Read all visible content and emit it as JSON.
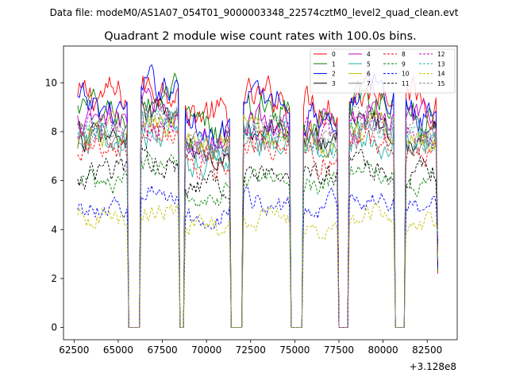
{
  "figure": {
    "suptitle": "Data file: modeM0/AS1A07_054T01_9000003348_22574cztM0_level2_quad_clean.evt",
    "offset_label": "+3.128e8"
  },
  "chart_data": {
    "type": "line",
    "title": "Quadrant 2 module wise count rates with 100.0s bins.",
    "xlabel": "",
    "ylabel": "",
    "xlim": [
      61900,
      84200
    ],
    "ylim": [
      -0.5,
      11.5
    ],
    "x_offset": 312800000,
    "x_range": [
      62700,
      83100
    ],
    "bin_width": 100,
    "x_ticks": [
      62500,
      65000,
      67500,
      70000,
      72500,
      75000,
      77500,
      80000,
      82500
    ],
    "x_tick_labels": [
      "62500",
      "65000",
      "67500",
      "70000",
      "72500",
      "75000",
      "77500",
      "80000",
      "82500"
    ],
    "y_ticks": [
      0,
      2,
      4,
      6,
      8,
      10
    ],
    "y_tick_labels": [
      "0",
      "2",
      "4",
      "6",
      "8",
      "10"
    ],
    "gaps": [
      {
        "start": 65600,
        "end": 66300
      },
      {
        "start": 68500,
        "end": 68800
      },
      {
        "start": 71400,
        "end": 72100
      },
      {
        "start": 74800,
        "end": 75500
      },
      {
        "start": 77500,
        "end": 78100
      },
      {
        "start": 80700,
        "end": 81300
      }
    ],
    "legend_position": "top-right",
    "legend_columns": 4,
    "series": [
      {
        "name": "0",
        "color": "#ff0000",
        "dash": "solid",
        "mean": 9.3,
        "amplitude": 0.6
      },
      {
        "name": "1",
        "color": "#008000",
        "dash": "solid",
        "mean": 8.7,
        "amplitude": 0.55
      },
      {
        "name": "2",
        "color": "#0000ff",
        "dash": "solid",
        "mean": 9.0,
        "amplitude": 0.55
      },
      {
        "name": "3",
        "color": "#000000",
        "dash": "solid",
        "mean": 7.9,
        "amplitude": 0.5
      },
      {
        "name": "4",
        "color": "#bf00bf",
        "dash": "solid",
        "mean": 8.4,
        "amplitude": 0.5
      },
      {
        "name": "5",
        "color": "#20b2aa",
        "dash": "solid",
        "mean": 7.5,
        "amplitude": 0.55
      },
      {
        "name": "6",
        "color": "#bfbf00",
        "dash": "solid",
        "mean": 7.8,
        "amplitude": 0.5
      },
      {
        "name": "7",
        "color": "#808080",
        "dash": "solid",
        "mean": 7.6,
        "amplitude": 0.5
      },
      {
        "name": "8",
        "color": "#ff0000",
        "dash": "dashed",
        "mean": 7.2,
        "amplitude": 0.45
      },
      {
        "name": "9",
        "color": "#008000",
        "dash": "dashed",
        "mean": 6.0,
        "amplitude": 0.35
      },
      {
        "name": "10",
        "color": "#0000ff",
        "dash": "dashed",
        "mean": 5.0,
        "amplitude": 0.35
      },
      {
        "name": "11",
        "color": "#000000",
        "dash": "dashed",
        "mean": 6.3,
        "amplitude": 0.4
      },
      {
        "name": "12",
        "color": "#bf00bf",
        "dash": "dashed",
        "mean": 7.9,
        "amplitude": 0.45
      },
      {
        "name": "13",
        "color": "#20b2aa",
        "dash": "dashed",
        "mean": 7.8,
        "amplitude": 0.45
      },
      {
        "name": "14",
        "color": "#bfbf00",
        "dash": "dashed",
        "mean": 4.4,
        "amplitude": 0.35
      },
      {
        "name": "15",
        "color": "#808080",
        "dash": "dashed",
        "mean": 8.1,
        "amplitude": 0.45
      }
    ]
  }
}
